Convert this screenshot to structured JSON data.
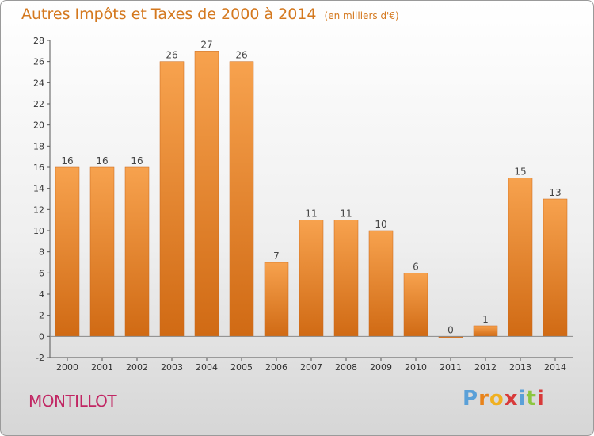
{
  "title": "Autres Impôts et Taxes de 2000 à 2014",
  "subtitle": "(en milliers d'€)",
  "commune": "MONTILLOT",
  "brand": {
    "text": "Proxiti",
    "letter_colors": [
      "#5aa0d8",
      "#e8831a",
      "#f0b020",
      "#d83a3a",
      "#5aa0d8",
      "#8cc63f",
      "#d83a3a"
    ]
  },
  "colors": {
    "bar_light": "#f7a24e",
    "bar_dark": "#d06a14",
    "title": "#d4781e",
    "commune": "#c12663"
  },
  "chart_data": {
    "type": "bar",
    "title": "Autres Impôts et Taxes de 2000 à 2014",
    "subtitle": "(en milliers d'€)",
    "xlabel": "",
    "ylabel": "",
    "categories": [
      "2000",
      "2001",
      "2002",
      "2003",
      "2004",
      "2005",
      "2006",
      "2007",
      "2008",
      "2009",
      "2010",
      "2011",
      "2012",
      "2013",
      "2014"
    ],
    "values": [
      16,
      16,
      16,
      26,
      27,
      26,
      7,
      11,
      11,
      10,
      6,
      0,
      1,
      15,
      13
    ],
    "ylim": [
      -2,
      28
    ],
    "yticks": [
      -2,
      0,
      2,
      4,
      6,
      8,
      10,
      12,
      14,
      16,
      18,
      20,
      22,
      24,
      26,
      28
    ],
    "grid": false,
    "legend": "none"
  }
}
